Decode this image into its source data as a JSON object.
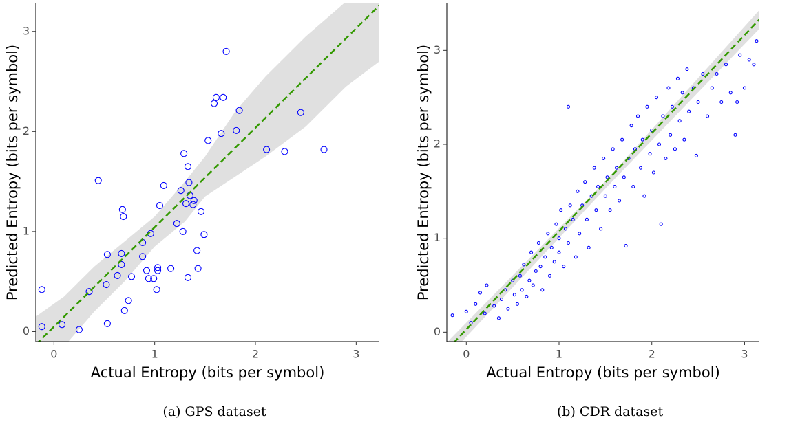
{
  "chart_data": [
    {
      "type": "scatter",
      "x_label": "Actual Entropy (bits per symbol)",
      "y_label": "Predicted Entropy (bits per symbol)",
      "caption": "(a) GPS dataset",
      "xlim": [
        -0.18,
        3.23
      ],
      "ylim": [
        -0.1,
        3.28
      ],
      "xticks": [
        0,
        1,
        2,
        3
      ],
      "yticks": [
        0,
        1,
        2,
        3
      ],
      "color": "#0000ff",
      "point_radius": 4.5,
      "x": [
        -0.12,
        -0.12,
        0.08,
        0.25,
        0.35,
        0.44,
        0.52,
        0.53,
        0.53,
        0.63,
        0.67,
        0.67,
        0.68,
        0.69,
        0.7,
        0.74,
        0.77,
        0.88,
        0.88,
        0.92,
        0.94,
        0.96,
        0.99,
        1.02,
        1.03,
        1.03,
        1.05,
        1.09,
        1.16,
        1.22,
        1.26,
        1.28,
        1.29,
        1.31,
        1.33,
        1.33,
        1.34,
        1.35,
        1.38,
        1.39,
        1.42,
        1.43,
        1.46,
        1.49,
        1.53,
        1.59,
        1.61,
        1.66,
        1.68,
        1.71,
        1.81,
        1.84,
        2.11,
        2.29,
        2.45,
        2.68
      ],
      "y": [
        0.42,
        0.05,
        0.07,
        0.02,
        0.4,
        1.51,
        0.47,
        0.77,
        0.08,
        0.56,
        0.67,
        0.78,
        1.22,
        1.15,
        0.21,
        0.31,
        0.55,
        0.75,
        0.89,
        0.61,
        0.53,
        0.98,
        0.53,
        0.42,
        0.61,
        0.64,
        1.26,
        1.46,
        0.63,
        1.08,
        1.41,
        1.0,
        1.78,
        1.28,
        1.65,
        0.54,
        1.49,
        1.36,
        1.27,
        1.31,
        0.81,
        0.63,
        1.2,
        0.97,
        1.91,
        2.28,
        2.34,
        1.98,
        2.34,
        2.8,
        2.01,
        2.21,
        1.82,
        1.8,
        2.19,
        1.82
      ],
      "band": {
        "color": "#e0e0e0",
        "x": [
          -0.18,
          0.1,
          0.4,
          0.7,
          1.0,
          1.3,
          1.5,
          1.8,
          2.1,
          2.5,
          2.9,
          3.23
        ],
        "lower": [
          -0.45,
          -0.15,
          0.2,
          0.5,
          0.85,
          1.1,
          1.35,
          1.55,
          1.75,
          2.05,
          2.45,
          2.7
        ],
        "upper": [
          0.15,
          0.35,
          0.65,
          0.9,
          1.15,
          1.5,
          1.75,
          2.2,
          2.55,
          2.95,
          3.3,
          3.6
        ]
      },
      "fit": {
        "color": "#339900",
        "x": [
          -0.18,
          3.23
        ],
        "y": [
          -0.13,
          3.26
        ]
      }
    },
    {
      "type": "scatter",
      "x_label": "Actual Entropy (bits per symbol)",
      "y_label": "Predicted Entropy (bits per symbol)",
      "caption": "(b) CDR dataset",
      "xlim": [
        -0.21,
        3.16
      ],
      "ylim": [
        -0.1,
        3.5
      ],
      "xticks": [
        0,
        1,
        2,
        3
      ],
      "yticks": [
        0,
        1,
        2,
        3
      ],
      "color": "#0000ff",
      "point_radius": 2,
      "x": [
        -0.15,
        0.0,
        0.05,
        0.1,
        0.15,
        0.2,
        0.22,
        0.3,
        0.35,
        0.38,
        0.42,
        0.45,
        0.5,
        0.52,
        0.55,
        0.58,
        0.6,
        0.62,
        0.65,
        0.68,
        0.7,
        0.72,
        0.75,
        0.78,
        0.8,
        0.82,
        0.85,
        0.88,
        0.9,
        0.92,
        0.95,
        0.97,
        1.0,
        1.0,
        1.02,
        1.05,
        1.07,
        1.1,
        1.1,
        1.12,
        1.15,
        1.18,
        1.2,
        1.22,
        1.25,
        1.28,
        1.3,
        1.32,
        1.35,
        1.38,
        1.4,
        1.42,
        1.45,
        1.48,
        1.5,
        1.52,
        1.55,
        1.58,
        1.6,
        1.62,
        1.65,
        1.68,
        1.7,
        1.72,
        1.75,
        1.78,
        1.8,
        1.82,
        1.85,
        1.88,
        1.9,
        1.92,
        1.95,
        1.98,
        2.0,
        2.02,
        2.05,
        2.08,
        2.1,
        2.12,
        2.15,
        2.18,
        2.2,
        2.22,
        2.25,
        2.28,
        2.3,
        2.33,
        2.35,
        2.38,
        2.4,
        2.45,
        2.48,
        2.5,
        2.55,
        2.6,
        2.65,
        2.7,
        2.75,
        2.8,
        2.85,
        2.9,
        2.92,
        2.95,
        3.0,
        3.05,
        3.1,
        3.13
      ],
      "y": [
        0.18,
        0.22,
        0.1,
        0.3,
        0.42,
        0.2,
        0.5,
        0.28,
        0.15,
        0.35,
        0.45,
        0.25,
        0.55,
        0.4,
        0.3,
        0.6,
        0.45,
        0.72,
        0.38,
        0.55,
        0.85,
        0.5,
        0.65,
        0.95,
        0.7,
        0.45,
        0.8,
        1.05,
        0.6,
        0.9,
        0.75,
        1.15,
        0.85,
        1.0,
        1.3,
        0.7,
        1.1,
        0.95,
        2.4,
        1.35,
        1.2,
        0.8,
        1.5,
        1.05,
        1.35,
        1.6,
        1.2,
        0.9,
        1.45,
        1.75,
        1.3,
        1.55,
        1.1,
        1.85,
        1.45,
        1.65,
        1.3,
        1.95,
        1.55,
        1.75,
        1.4,
        2.05,
        1.65,
        0.92,
        1.85,
        2.2,
        1.55,
        1.95,
        2.3,
        1.75,
        2.05,
        1.45,
        2.4,
        1.9,
        2.15,
        1.7,
        2.5,
        2.0,
        1.15,
        2.3,
        1.85,
        2.6,
        2.1,
        2.4,
        1.95,
        2.7,
        2.25,
        2.55,
        2.05,
        2.8,
        2.35,
        2.6,
        1.88,
        2.45,
        2.75,
        2.3,
        2.6,
        2.75,
        2.45,
        2.85,
        2.55,
        2.1,
        2.45,
        2.95,
        2.6,
        2.9,
        2.85,
        3.1
      ],
      "band": {
        "color": "#e0e0e0",
        "x": [
          -0.21,
          1.5,
          3.16
        ],
        "lower": [
          -0.27,
          1.53,
          3.23
        ],
        "upper": [
          -0.11,
          1.61,
          3.43
        ]
      },
      "fit": {
        "color": "#339900",
        "x": [
          -0.21,
          3.16
        ],
        "y": [
          -0.19,
          3.33
        ]
      }
    }
  ]
}
